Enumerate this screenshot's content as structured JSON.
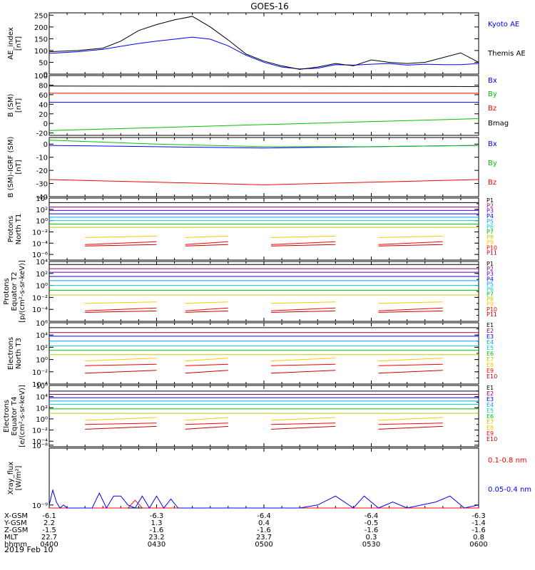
{
  "title": "GOES-16",
  "date_label": "2019 Feb 10",
  "footer": {
    "rows": [
      {
        "label": "X-GSM",
        "values": [
          "-6.1",
          "-6.3",
          "-6.4",
          "-6.4",
          "-6.3"
        ]
      },
      {
        "label": "Y-GSM",
        "values": [
          "2.2",
          "1.3",
          "0.4",
          "-0.5",
          "-1.4"
        ]
      },
      {
        "label": "Z-GSM",
        "values": [
          "-1.5",
          "-1.6",
          "-1.6",
          "-1.6",
          "-1.6"
        ]
      },
      {
        "label": "MLT",
        "values": [
          "22.7",
          "23.2",
          "23.7",
          "0.3",
          "0.8"
        ]
      },
      {
        "label": "hhmm",
        "values": [
          "0400",
          "0430",
          "0500",
          "0530",
          "0600"
        ]
      }
    ]
  },
  "chart_data": [
    {
      "type": "line",
      "id": "ae",
      "ylabel": "AE_index\n[nT]",
      "ylim": [
        0,
        260
      ],
      "yticks": [
        "0",
        "50",
        "100",
        "150",
        "200",
        "250"
      ],
      "ytick_values": [
        0,
        50,
        100,
        150,
        200,
        250
      ],
      "x": [
        0,
        8,
        15,
        20,
        25,
        30,
        35,
        40,
        45,
        50,
        55,
        60,
        65,
        70,
        75,
        80,
        85,
        90,
        95,
        100,
        105,
        110,
        115,
        120
      ],
      "series": [
        {
          "name": "Kyoto AE",
          "color": "#0000ff",
          "values": [
            88,
            95,
            105,
            118,
            130,
            140,
            148,
            157,
            148,
            120,
            80,
            50,
            30,
            22,
            25,
            40,
            38,
            42,
            45,
            38,
            42,
            40,
            40,
            45
          ]
        },
        {
          "name": "Themis AE",
          "color": "#000000",
          "values": [
            95,
            100,
            110,
            140,
            185,
            210,
            230,
            245,
            200,
            145,
            85,
            55,
            35,
            20,
            30,
            45,
            35,
            60,
            50,
            45,
            50,
            70,
            90,
            50
          ]
        }
      ]
    },
    {
      "type": "line",
      "id": "bsm",
      "ylabel": "B (SM)\n[nT]",
      "ylim": [
        -25,
        100
      ],
      "yticks": [
        "-20",
        "0",
        "20",
        "40",
        "60",
        "80",
        "100"
      ],
      "ytick_values": [
        -20,
        0,
        20,
        40,
        60,
        80,
        100
      ],
      "x": [
        0,
        120
      ],
      "series": [
        {
          "name": "Bx",
          "color": "#0000ff",
          "values": [
            44,
            44
          ]
        },
        {
          "name": "By",
          "color": "#00c000",
          "values": [
            -15,
            10
          ]
        },
        {
          "name": "Bz",
          "color": "#ff0000",
          "values": [
            63,
            63
          ]
        },
        {
          "name": "Bmag",
          "color": "#000000",
          "values": [
            78,
            77
          ]
        }
      ]
    },
    {
      "type": "line",
      "id": "bigrf",
      "ylabel": "B (SM)-IGRF (SM)\n[nT]",
      "ylim": [
        -40,
        5
      ],
      "yticks": [
        "-40",
        "-30",
        "-20",
        "-10",
        "0"
      ],
      "ytick_values": [
        -40,
        -30,
        -20,
        -10,
        0
      ],
      "x": [
        0,
        30,
        60,
        90,
        120
      ],
      "series": [
        {
          "name": "Bx",
          "color": "#0000ff",
          "values": [
            -1,
            -2,
            -3,
            -2,
            -1
          ]
        },
        {
          "name": "By",
          "color": "#00c000",
          "values": [
            3,
            0,
            -2,
            -2,
            -1
          ]
        },
        {
          "name": "Bz",
          "color": "#ff0000",
          "values": [
            -27,
            -29,
            -31,
            -29,
            -27
          ]
        }
      ]
    },
    {
      "type": "line",
      "id": "protons-t1",
      "ylabel": "Protons\nNorth T1",
      "ylim": [
        -7,
        4
      ],
      "log": true,
      "yticks": [
        "10⁴",
        "10²",
        "10⁰",
        "10⁻²",
        "10⁻⁴",
        "10⁻⁶"
      ],
      "ytick_values": [
        4,
        2,
        0,
        -2,
        -4,
        -6
      ],
      "legend": [
        "P1",
        "P2",
        "P3",
        "P4",
        "P5",
        "P6",
        "P7",
        "P8",
        "P9",
        "P10",
        "P11"
      ],
      "levels": [
        3.2,
        2.4,
        1.8,
        1.2,
        0.6,
        0.0,
        -0.6,
        -1.2,
        -3.0,
        -4.0,
        -4.5
      ]
    },
    {
      "type": "line",
      "id": "protons-t2",
      "ylabel": "Protons\nEquator T2\n[p/(cm²-s-sr-keV)]",
      "ylim": [
        -6,
        4
      ],
      "log": true,
      "yticks": [
        "10⁴",
        "10²",
        "10⁰",
        "10⁻²",
        "10⁻⁴"
      ],
      "ytick_values": [
        4,
        2,
        0,
        -2,
        -4
      ],
      "legend": [
        "P1",
        "P2",
        "P3",
        "P4",
        "P5",
        "P6",
        "P7",
        "P8",
        "P9",
        "P10",
        "P11"
      ],
      "levels": [
        3.5,
        2.8,
        2.2,
        1.5,
        0.8,
        0.0,
        -0.8,
        -1.6,
        -3.0,
        -4.0,
        -4.5
      ]
    },
    {
      "type": "line",
      "id": "electrons-t3",
      "ylabel": "Electrons\nNorth T3",
      "ylim": [
        -4,
        6
      ],
      "log": true,
      "yticks": [
        "10⁶",
        "10⁴",
        "10²",
        "10⁰",
        "10⁻²",
        "10⁻⁴"
      ],
      "ytick_values": [
        6,
        4,
        2,
        0,
        -2,
        -4
      ],
      "legend": [
        "E1",
        "E2",
        "E3",
        "E4",
        "E5",
        "E6",
        "E7",
        "E8",
        "E9",
        "E10"
      ],
      "levels": [
        5.2,
        4.4,
        3.8,
        3.0,
        2.2,
        1.5,
        0.8,
        0.0,
        -1.0,
        -2.0
      ]
    },
    {
      "type": "line",
      "id": "electrons-t4",
      "ylabel": "Electrons\nEquator T4\n[e/(cm²-s-sr-keV)]",
      "ylim": [
        -5,
        6
      ],
      "log": true,
      "yticks": [
        "10⁶",
        "10⁴",
        "10²",
        "10⁰",
        "10⁻²",
        "10⁻⁴"
      ],
      "ytick_values": [
        6,
        4,
        2,
        0,
        -2,
        -4
      ],
      "legend": [
        "E1",
        "E2",
        "E3",
        "E4",
        "E5",
        "E6",
        "E7",
        "E8",
        "E9",
        "E10"
      ],
      "levels": [
        5.0,
        4.4,
        3.8,
        3.2,
        2.6,
        1.8,
        1.0,
        0.0,
        -1.0,
        -1.6
      ]
    },
    {
      "type": "line",
      "id": "xray",
      "ylabel": "Xray_flux\n[W/m²]",
      "ylim": [
        -9.05,
        -8.05
      ],
      "log": true,
      "yticks": [
        "10⁻⁸",
        "10⁻⁹"
      ],
      "ytick_values": [
        -8,
        -9
      ],
      "x": [
        0,
        1,
        2,
        3,
        4,
        5,
        6,
        8,
        12,
        14,
        16,
        18,
        20,
        22,
        24,
        26,
        28,
        30,
        32,
        34,
        36,
        40,
        50,
        60,
        70,
        75,
        80,
        85,
        88,
        92,
        96,
        100,
        104,
        108,
        112,
        116,
        120
      ],
      "series": [
        {
          "name": "0.1-0.8 nm",
          "color": "#ff0000",
          "values": [
            -9.05,
            -9.05,
            -9.05,
            -9.05,
            -9.05,
            -9.05,
            -9.05,
            -9.05,
            -9.05,
            -9.05,
            -9.05,
            -9.05,
            -9.05,
            -9.05,
            -8.92,
            -9.05,
            -9.05,
            -9.05,
            -9.05,
            -9.05,
            -9.05,
            -9.05,
            -9.05,
            -9.05,
            -9.05,
            -9.05,
            -9.05,
            -9.05,
            -9.05,
            -9.05,
            -9.05,
            -9.05,
            -9.05,
            -9.05,
            -9.05,
            -9.05,
            -9.05
          ]
        },
        {
          "name": "0.05-0.4 nm",
          "color": "#0000ff",
          "values": [
            -9.0,
            -8.75,
            -8.95,
            -9.05,
            -9.0,
            -9.05,
            -9.05,
            -9.05,
            -9.05,
            -8.8,
            -9.05,
            -8.85,
            -8.85,
            -9.0,
            -9.05,
            -8.85,
            -9.05,
            -8.85,
            -9.05,
            -8.9,
            -9.05,
            -9.05,
            -9.05,
            -9.05,
            -9.05,
            -9.0,
            -8.85,
            -9.05,
            -8.85,
            -9.05,
            -8.95,
            -9.05,
            -9.0,
            -8.95,
            -8.85,
            -9.05,
            -9.0
          ]
        }
      ]
    }
  ],
  "legend_colors_p": [
    "#000000",
    "#8b0070",
    "#5a00c8",
    "#0000ff",
    "#00a0ff",
    "#00d2c8",
    "#00c000",
    "#c8c800",
    "#ffc800",
    "#ff0000",
    "#c80000"
  ],
  "legend_colors_e": [
    "#000000",
    "#8b0070",
    "#0000ff",
    "#00a0ff",
    "#00d2c8",
    "#00c000",
    "#c8c800",
    "#ffc800",
    "#ff0000",
    "#c80000"
  ]
}
